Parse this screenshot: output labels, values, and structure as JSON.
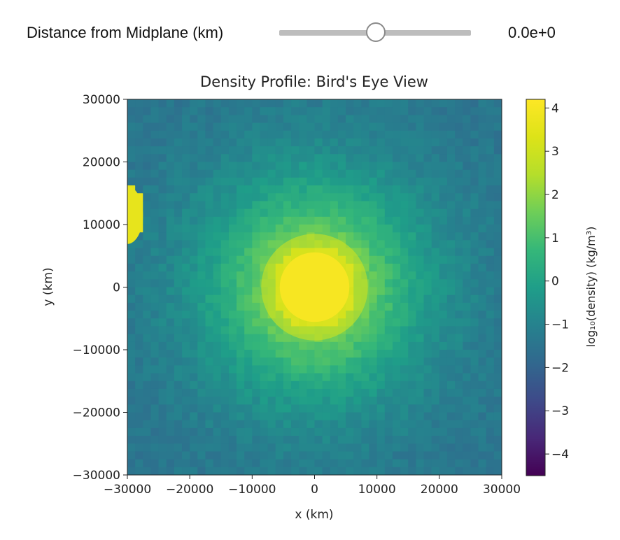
{
  "slider": {
    "label": "Distance from Midplane (km)",
    "value_text": "0.0e+0",
    "value": 0.0
  },
  "chart_data": {
    "type": "heatmap",
    "title": "Density Profile: Bird's Eye View",
    "xlabel": "x (km)",
    "ylabel": "y (km)",
    "xlim": [
      -30000,
      30000
    ],
    "ylim": [
      -30000,
      30000
    ],
    "xticks": [
      -30000,
      -20000,
      -10000,
      0,
      10000,
      20000,
      30000
    ],
    "yticks": [
      -30000,
      -20000,
      -10000,
      0,
      10000,
      20000,
      30000
    ],
    "xtick_labels": [
      "−30000",
      "−20000",
      "−10000",
      "0",
      "10000",
      "20000",
      "30000"
    ],
    "ytick_labels": [
      "−30000",
      "−20000",
      "−10000",
      "0",
      "10000",
      "20000",
      "30000"
    ],
    "colorbar": {
      "label": "log₁₀(density) (kg/m³)",
      "range": [
        -4.5,
        4.2
      ],
      "ticks": [
        -4,
        -3,
        -2,
        -1,
        0,
        1,
        2,
        3,
        4
      ],
      "tick_labels": [
        "−4",
        "−3",
        "−2",
        "−1",
        "0",
        "1",
        "2",
        "3",
        "4"
      ],
      "colormap": "viridis"
    },
    "features": {
      "core": {
        "x": 0,
        "y": 0,
        "peak_log_density": 4.0,
        "radius": 9000
      },
      "left_edge_blob": {
        "x": -30000,
        "y": 11500,
        "log_density": 3.6
      },
      "background_log_density": -1.5
    }
  }
}
